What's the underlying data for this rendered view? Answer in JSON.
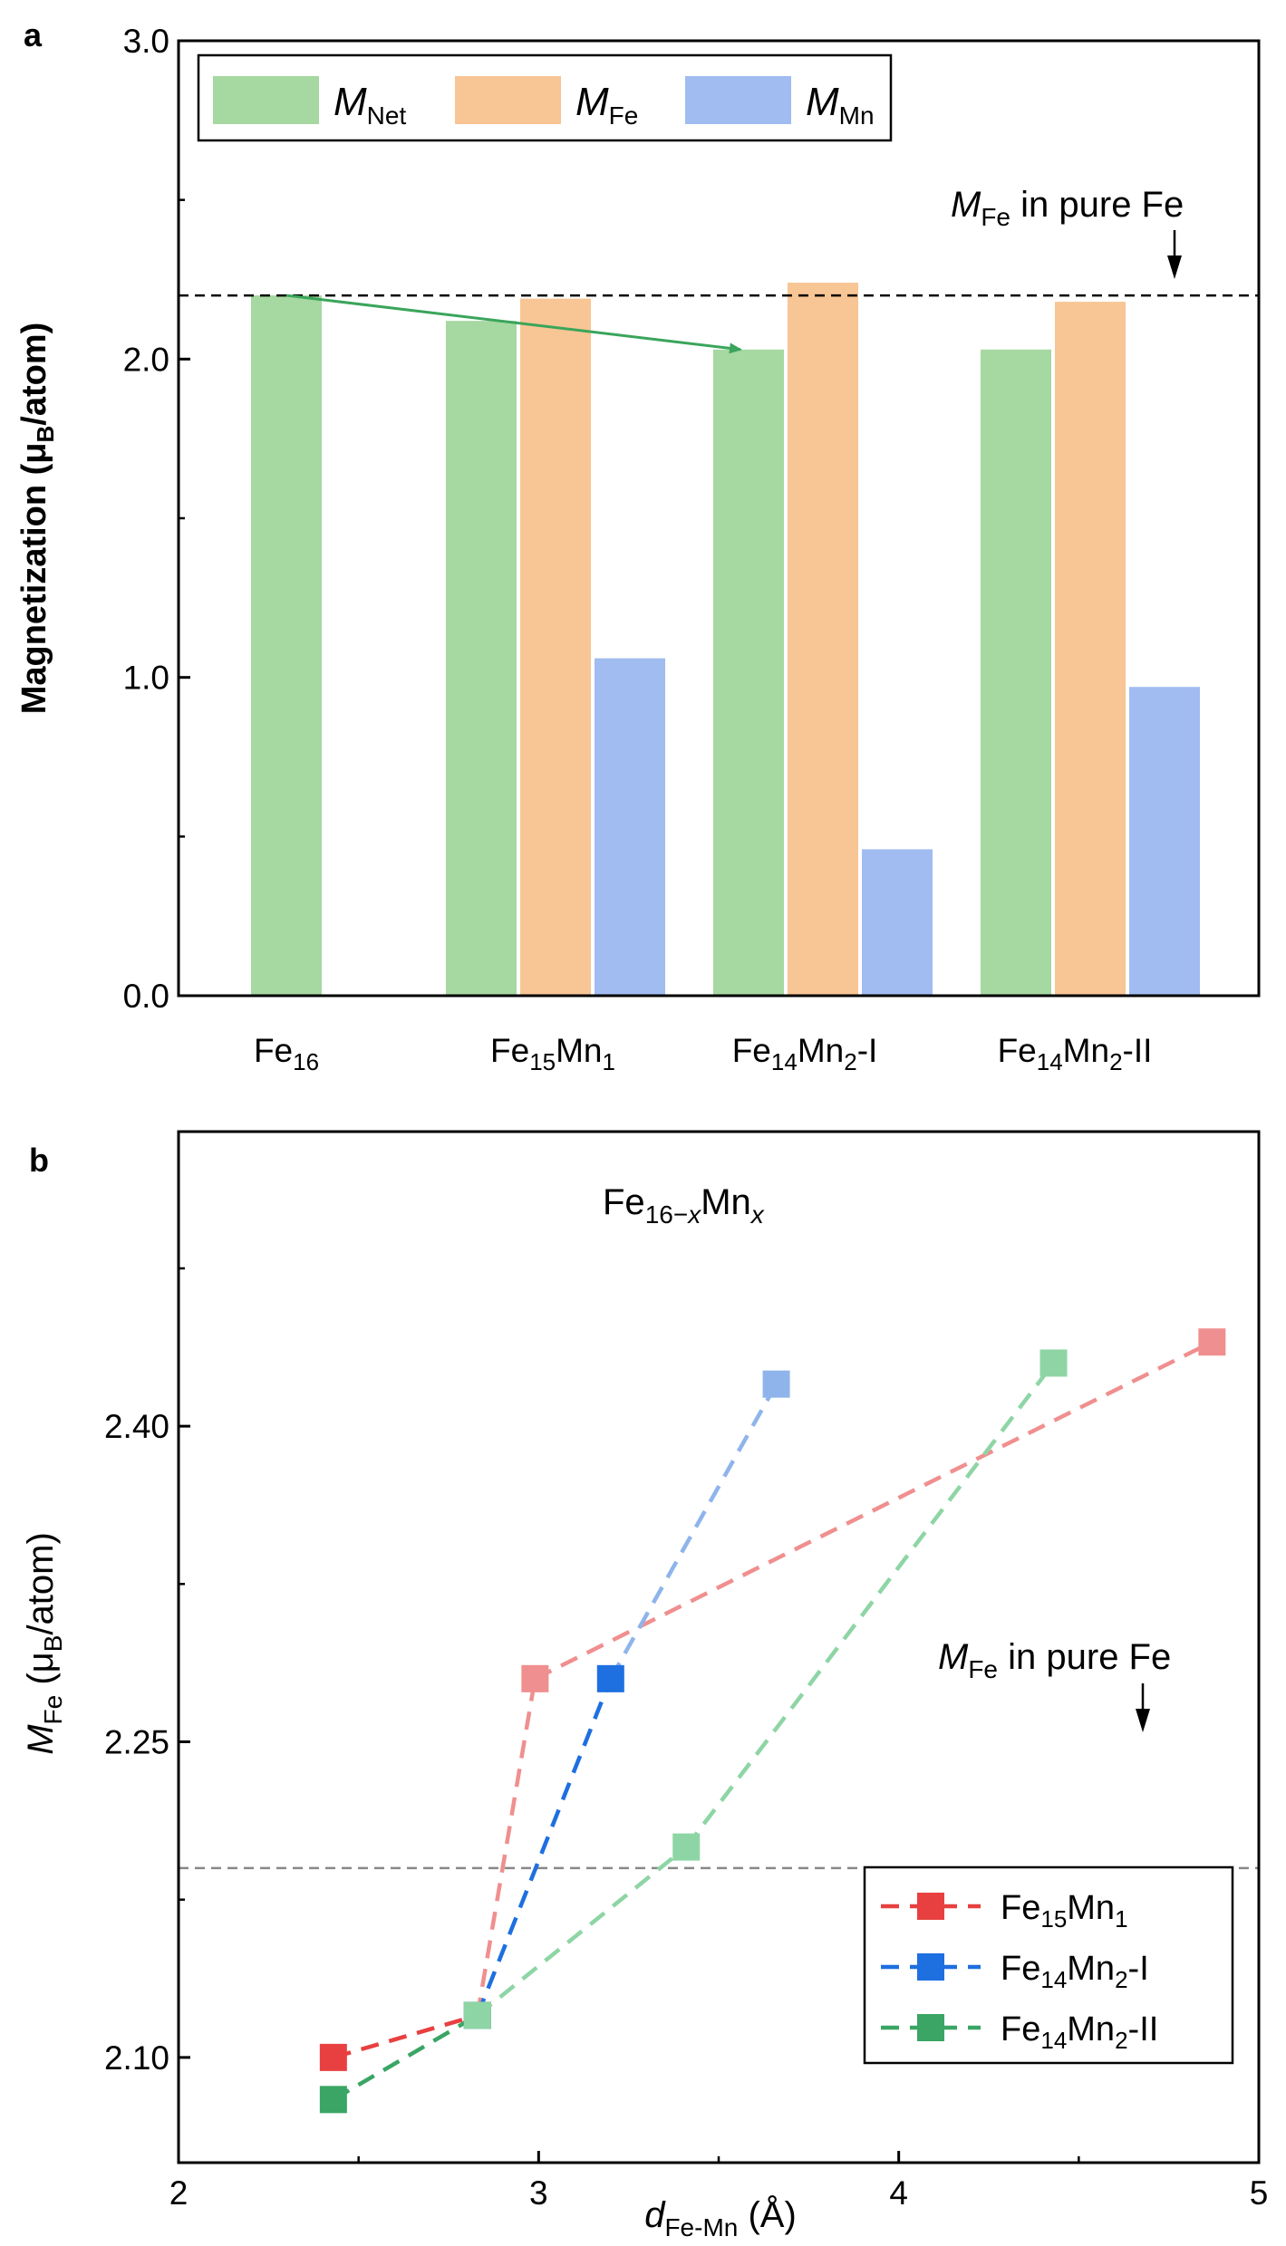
{
  "panels": {
    "a": "a",
    "b": "b"
  },
  "chart_data": [
    {
      "type": "bar",
      "panel": "a",
      "ylabel": "Magnetization (μB/atom)",
      "ylabel_parts": [
        "Magnetization (μ",
        "B",
        "/atom)"
      ],
      "ylim": [
        0.0,
        3.0
      ],
      "yticks": [
        "0.0",
        "1.0",
        "2.0",
        "3.0"
      ],
      "ytick_values": [
        0,
        1,
        2,
        3
      ],
      "categories": [
        "Fe16",
        "Fe15Mn1",
        "Fe14Mn2-I",
        "Fe14Mn2-II"
      ],
      "category_parts": [
        [
          [
            "Fe",
            ""
          ],
          [
            "16",
            "sub"
          ]
        ],
        [
          [
            "Fe",
            ""
          ],
          [
            "15",
            "sub"
          ],
          [
            "Mn",
            ""
          ],
          [
            "1",
            "sub"
          ]
        ],
        [
          [
            "Fe",
            ""
          ],
          [
            "14",
            "sub"
          ],
          [
            "Mn",
            ""
          ],
          [
            "2",
            "sub"
          ],
          [
            "-I",
            ""
          ]
        ],
        [
          [
            "Fe",
            ""
          ],
          [
            "14",
            "sub"
          ],
          [
            "Mn",
            ""
          ],
          [
            "2",
            "sub"
          ],
          [
            "-II",
            ""
          ]
        ]
      ],
      "series": [
        {
          "name": "MNet",
          "label_main": "M",
          "label_sub": "Net",
          "color": "#a6d8a1",
          "values": [
            2.2,
            2.12,
            2.03,
            2.03
          ]
        },
        {
          "name": "MFe",
          "label_main": "M",
          "label_sub": "Fe",
          "color": "#f8c594",
          "values": [
            null,
            2.19,
            2.24,
            2.18
          ]
        },
        {
          "name": "MMn",
          "label_main": "M",
          "label_sub": "Mn",
          "color": "#a0bcf0",
          "values": [
            null,
            1.06,
            0.46,
            0.97
          ]
        }
      ],
      "reference_line": {
        "value": 2.2,
        "label": "MFe in pure Fe",
        "label_parts": [
          "M",
          "Fe",
          " in pure Fe"
        ]
      },
      "arrow": {
        "from": {
          "category": 0,
          "value": 2.2
        },
        "to": {
          "category": 2,
          "value": 2.03
        },
        "color": "#3aa55b"
      },
      "legend_position": "top-left"
    },
    {
      "type": "line",
      "panel": "b",
      "title": "Fe16−xMnx",
      "title_parts": [
        [
          "Fe",
          "",
          false
        ],
        [
          "16−",
          "sub",
          false
        ],
        [
          "x",
          "sub",
          true
        ],
        [
          "Mn",
          "",
          false
        ],
        [
          "x",
          "sub",
          true
        ]
      ],
      "xlabel": "dFe-Mn (Å)",
      "xlabel_parts": [
        "d",
        "Fe-Mn",
        " (Å)"
      ],
      "ylabel": "MFe (μB/atom)",
      "ylabel_parts": [
        "M",
        "Fe",
        "  (μ",
        "B",
        "/atom)"
      ],
      "xlim": [
        2,
        5
      ],
      "ylim": [
        2.05,
        2.54
      ],
      "xticks": [
        "2",
        "3",
        "4",
        "5"
      ],
      "xtick_values": [
        2,
        3,
        4,
        5
      ],
      "yticks": [
        "2.10",
        "2.25",
        "2.40"
      ],
      "ytick_values": [
        2.1,
        2.25,
        2.4
      ],
      "series": [
        {
          "name": "Fe15Mn1",
          "label_parts": [
            [
              "Fe",
              ""
            ],
            [
              "15",
              "sub"
            ],
            [
              "Mn",
              ""
            ],
            [
              "1",
              "sub"
            ]
          ],
          "color": "#e84040",
          "faded_color": "#f08f8f",
          "points": [
            {
              "x": 2.43,
              "y": 2.1
            },
            {
              "x": 2.83,
              "y": 2.12
            },
            {
              "x": 2.99,
              "y": 2.28
            },
            {
              "x": 4.87,
              "y": 2.44
            }
          ]
        },
        {
          "name": "Fe14Mn2-I",
          "label_parts": [
            [
              "Fe",
              ""
            ],
            [
              "14",
              "sub"
            ],
            [
              "Mn",
              ""
            ],
            [
              "2",
              "sub"
            ],
            [
              "-I",
              ""
            ]
          ],
          "color": "#1e6fe0",
          "faded_color": "#8fb4ec",
          "points": [
            {
              "x": 2.83,
              "y": 2.12
            },
            {
              "x": 3.2,
              "y": 2.28
            },
            {
              "x": 3.66,
              "y": 2.42
            }
          ]
        },
        {
          "name": "Fe14Mn2-II",
          "label_parts": [
            [
              "Fe",
              ""
            ],
            [
              "14",
              "sub"
            ],
            [
              "Mn",
              ""
            ],
            [
              "2",
              "sub"
            ],
            [
              "-II",
              ""
            ]
          ],
          "color": "#3aa564",
          "faded_color": "#8ed5a5",
          "points": [
            {
              "x": 2.43,
              "y": 2.08
            },
            {
              "x": 2.83,
              "y": 2.12
            },
            {
              "x": 3.41,
              "y": 2.2
            },
            {
              "x": 4.43,
              "y": 2.43
            }
          ]
        }
      ],
      "reference_line": {
        "value": 2.19,
        "label": "MFe in pure Fe",
        "label_parts": [
          "M",
          "Fe",
          " in pure Fe"
        ]
      },
      "legend_position": "bottom-right"
    }
  ]
}
